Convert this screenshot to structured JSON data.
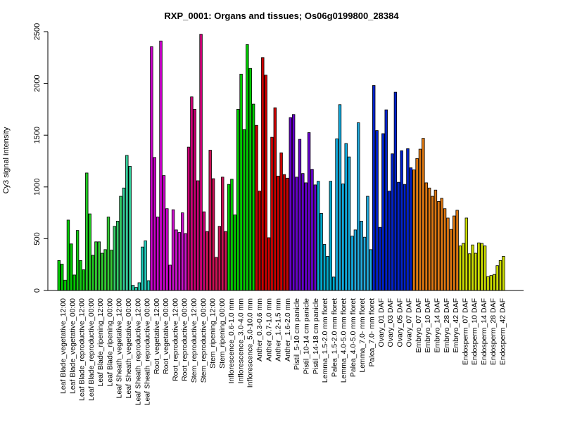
{
  "chart_data": {
    "type": "bar",
    "title": "RXP_0001: Organs and tissues; Os06g0199800_28384",
    "ylabel": "Cy3 signal intensity",
    "xlabel": "",
    "ylim": [
      0,
      2500
    ],
    "yticks": [
      0,
      500,
      1000,
      1500,
      2000,
      2500
    ],
    "grid": false,
    "legend": "none",
    "bars": [
      {
        "v": 290,
        "c": "#00cc00"
      },
      {
        "v": 255,
        "c": "#00cc00"
      },
      {
        "v": 100,
        "c": "#00cc00"
      },
      {
        "v": 680,
        "c": "#00cc00"
      },
      {
        "v": 450,
        "c": "#00cc00"
      },
      {
        "v": 150,
        "c": "#00cc00"
      },
      {
        "v": 580,
        "c": "#11cc11"
      },
      {
        "v": 290,
        "c": "#11cc11"
      },
      {
        "v": 200,
        "c": "#11cc11"
      },
      {
        "v": 1135,
        "c": "#22cc22"
      },
      {
        "v": 740,
        "c": "#22cc22"
      },
      {
        "v": 340,
        "c": "#22cc22"
      },
      {
        "v": 470,
        "c": "#33cc33"
      },
      {
        "v": 470,
        "c": "#33cc33"
      },
      {
        "v": 360,
        "c": "#33cc33"
      },
      {
        "v": 395,
        "c": "#33cc33"
      },
      {
        "v": 710,
        "c": "#33cc33"
      },
      {
        "v": 390,
        "c": "#33cc33"
      },
      {
        "v": 620,
        "c": "#33cc66"
      },
      {
        "v": 670,
        "c": "#33cc66"
      },
      {
        "v": 910,
        "c": "#33cc66"
      },
      {
        "v": 990,
        "c": "#33cc99"
      },
      {
        "v": 1305,
        "c": "#33cc99"
      },
      {
        "v": 1200,
        "c": "#33cc99"
      },
      {
        "v": 50,
        "c": "#22ccaa"
      },
      {
        "v": 30,
        "c": "#22ccaa"
      },
      {
        "v": 75,
        "c": "#22ccaa"
      },
      {
        "v": 420,
        "c": "#22ccbb"
      },
      {
        "v": 480,
        "c": "#22ccbb"
      },
      {
        "v": 95,
        "c": "#22ccbb"
      },
      {
        "v": 2355,
        "c": "#cc00cc"
      },
      {
        "v": 1285,
        "c": "#cc00cc"
      },
      {
        "v": 710,
        "c": "#cc00cc"
      },
      {
        "v": 2410,
        "c": "#cc00cc"
      },
      {
        "v": 1110,
        "c": "#cc00cc"
      },
      {
        "v": 790,
        "c": "#cc00cc"
      },
      {
        "v": 245,
        "c": "#cc11cc"
      },
      {
        "v": 780,
        "c": "#cc11cc"
      },
      {
        "v": 585,
        "c": "#cc11cc"
      },
      {
        "v": 560,
        "c": "#cc11cc"
      },
      {
        "v": 750,
        "c": "#cc11cc"
      },
      {
        "v": 550,
        "c": "#cc11cc"
      },
      {
        "v": 1385,
        "c": "#cc0077"
      },
      {
        "v": 1870,
        "c": "#cc0077"
      },
      {
        "v": 1750,
        "c": "#cc0077"
      },
      {
        "v": 1060,
        "c": "#cc0077"
      },
      {
        "v": 2475,
        "c": "#cc0077"
      },
      {
        "v": 760,
        "c": "#cc0077"
      },
      {
        "v": 570,
        "c": "#cc1155"
      },
      {
        "v": 1355,
        "c": "#cc1155"
      },
      {
        "v": 1080,
        "c": "#cc1155"
      },
      {
        "v": 320,
        "c": "#cc1155"
      },
      {
        "v": 620,
        "c": "#cc1155"
      },
      {
        "v": 1095,
        "c": "#cc1155"
      },
      {
        "v": 570,
        "c": "#cc1155"
      },
      {
        "v": 1025,
        "c": "#00cc00"
      },
      {
        "v": 1075,
        "c": "#00cc00"
      },
      {
        "v": 730,
        "c": "#00cc00"
      },
      {
        "v": 1750,
        "c": "#00cc00"
      },
      {
        "v": 2090,
        "c": "#00cc00"
      },
      {
        "v": 1555,
        "c": "#00cc00"
      },
      {
        "v": 2375,
        "c": "#00cc00"
      },
      {
        "v": 2145,
        "c": "#00cc00"
      },
      {
        "v": 1800,
        "c": "#00cc00"
      },
      {
        "v": 1595,
        "c": "#cc0000"
      },
      {
        "v": 960,
        "c": "#cc0000"
      },
      {
        "v": 2250,
        "c": "#cc0000"
      },
      {
        "v": 2080,
        "c": "#cc0000"
      },
      {
        "v": 510,
        "c": "#cc0000"
      },
      {
        "v": 1480,
        "c": "#cc0000"
      },
      {
        "v": 1765,
        "c": "#cc0000"
      },
      {
        "v": 1105,
        "c": "#cc0000"
      },
      {
        "v": 1330,
        "c": "#cc0000"
      },
      {
        "v": 1120,
        "c": "#cc0000"
      },
      {
        "v": 1085,
        "c": "#cc0000"
      },
      {
        "v": 1670,
        "c": "#6600cc"
      },
      {
        "v": 1700,
        "c": "#6600cc"
      },
      {
        "v": 1095,
        "c": "#6600cc"
      },
      {
        "v": 1460,
        "c": "#6600cc"
      },
      {
        "v": 1130,
        "c": "#6600cc"
      },
      {
        "v": 1040,
        "c": "#6600cc"
      },
      {
        "v": 1525,
        "c": "#6600cc"
      },
      {
        "v": 1170,
        "c": "#6600cc"
      },
      {
        "v": 1020,
        "c": "#6600cc"
      },
      {
        "v": 1055,
        "c": "#00aacc"
      },
      {
        "v": 745,
        "c": "#00aacc"
      },
      {
        "v": 445,
        "c": "#00aacc"
      },
      {
        "v": 330,
        "c": "#00aacc"
      },
      {
        "v": 1055,
        "c": "#00aacc"
      },
      {
        "v": 130,
        "c": "#00aacc"
      },
      {
        "v": 1465,
        "c": "#11aadd"
      },
      {
        "v": 1795,
        "c": "#11aadd"
      },
      {
        "v": 1030,
        "c": "#11aadd"
      },
      {
        "v": 1420,
        "c": "#11aadd"
      },
      {
        "v": 1290,
        "c": "#11aadd"
      },
      {
        "v": 525,
        "c": "#11aadd"
      },
      {
        "v": 585,
        "c": "#22aadd"
      },
      {
        "v": 1620,
        "c": "#22aadd"
      },
      {
        "v": 670,
        "c": "#22aadd"
      },
      {
        "v": 515,
        "c": "#22aadd"
      },
      {
        "v": 910,
        "c": "#22aadd"
      },
      {
        "v": 395,
        "c": "#22aadd"
      },
      {
        "v": 1980,
        "c": "#0022cc"
      },
      {
        "v": 1545,
        "c": "#0022cc"
      },
      {
        "v": 610,
        "c": "#0022cc"
      },
      {
        "v": 1515,
        "c": "#0022cc"
      },
      {
        "v": 1745,
        "c": "#0022cc"
      },
      {
        "v": 960,
        "c": "#0022cc"
      },
      {
        "v": 1320,
        "c": "#0022cc"
      },
      {
        "v": 1915,
        "c": "#0022cc"
      },
      {
        "v": 1045,
        "c": "#0022cc"
      },
      {
        "v": 1350,
        "c": "#0022cc"
      },
      {
        "v": 1025,
        "c": "#0022cc"
      },
      {
        "v": 1370,
        "c": "#0022cc"
      },
      {
        "v": 1185,
        "c": "#0022cc"
      },
      {
        "v": 1165,
        "c": "#dd7711"
      },
      {
        "v": 1275,
        "c": "#dd7711"
      },
      {
        "v": 1365,
        "c": "#dd7711"
      },
      {
        "v": 1470,
        "c": "#dd7711"
      },
      {
        "v": 1040,
        "c": "#dd7711"
      },
      {
        "v": 990,
        "c": "#dd7711"
      },
      {
        "v": 910,
        "c": "#dd7711"
      },
      {
        "v": 970,
        "c": "#dd7711"
      },
      {
        "v": 860,
        "c": "#dd7711"
      },
      {
        "v": 890,
        "c": "#dd7711"
      },
      {
        "v": 790,
        "c": "#dd7711"
      },
      {
        "v": 700,
        "c": "#dd7711"
      },
      {
        "v": 590,
        "c": "#dd7711"
      },
      {
        "v": 720,
        "c": "#dd7711"
      },
      {
        "v": 775,
        "c": "#dd7711"
      },
      {
        "v": 430,
        "c": "#ccdd00"
      },
      {
        "v": 455,
        "c": "#ccdd00"
      },
      {
        "v": 700,
        "c": "#ccdd00"
      },
      {
        "v": 355,
        "c": "#ccdd00"
      },
      {
        "v": 440,
        "c": "#ccdd00"
      },
      {
        "v": 360,
        "c": "#ccdd00"
      },
      {
        "v": 460,
        "c": "#ccdd00"
      },
      {
        "v": 455,
        "c": "#ccdd00"
      },
      {
        "v": 430,
        "c": "#ccdd00"
      },
      {
        "v": 135,
        "c": "#ccdd00"
      },
      {
        "v": 145,
        "c": "#ccdd00"
      },
      {
        "v": 155,
        "c": "#ccdd00"
      },
      {
        "v": 240,
        "c": "#ccdd00"
      },
      {
        "v": 290,
        "c": "#ccdd00"
      },
      {
        "v": 330,
        "c": "#ccdd00"
      }
    ],
    "category_labels": [
      "Leaf Blade_vegetative_12:00",
      "Leaf Blade_vegetative_00:00",
      "Leaf Blade_reproductive_12:00",
      "Leaf Blade_reproductive_00:00",
      "Leaf Blade_ripening_12:00",
      "Leaf Blade_ripening_00:00",
      "Leaf Sheath_vegetative_12:00",
      "Leaf Sheath_vegetative_00:00",
      "Leaf Sheath_reproductive_12:00",
      "Leaf Sheath_reproductive_00:00",
      "Root_vegetative_12:00",
      "Root_vegetative_00:00",
      "Root_reproductive_12:00",
      "Root_reproductive_00:00",
      "Stem_reproductive_12:00",
      "Stem_reproductive_00:00",
      "Stem_ripening_12:00",
      "Stem_ripening_00:00",
      "Inflorescence_0.6-1.0 mm",
      "Inflorescence_3.0-4.0 mm",
      "Inflorescence_5.0-10.0 mm",
      "Anther_0.3-0.6 mm",
      "Anther_0.7-1.0 mm",
      "Anther_1.2-1.5 mm",
      "Anther_1.6-2.0 mm",
      "Pistil_5-10 cm panicle",
      "Pistil_10-14 cm panicle",
      "Pistil_14-18 cm panicle",
      "Lemma_1.5-2.0 mm floret",
      "Palea_1.5-2.0 mm floret",
      "Lemma_4.0-5.0 mm floret",
      "Palea_4.0-5.0 mm floret",
      "Lemma_7.0- mm floret",
      "Palea_7.0- mm floret",
      "Ovary_01 DAF",
      "Ovary_03 DAF",
      "Ovary_05 DAF",
      "Ovary_07 DAF",
      "Embryo_07 DAF",
      "Embryo_10 DAF",
      "Embryo_14 DAF",
      "Embryo_28 DAF",
      "Embryo_42 DAF",
      "Endosperm_07 DAF",
      "Endosperm_10 DAF",
      "Endosperm_14 DAF",
      "Endosperm_28 DAF",
      "Endosperm_42 DAF"
    ]
  }
}
